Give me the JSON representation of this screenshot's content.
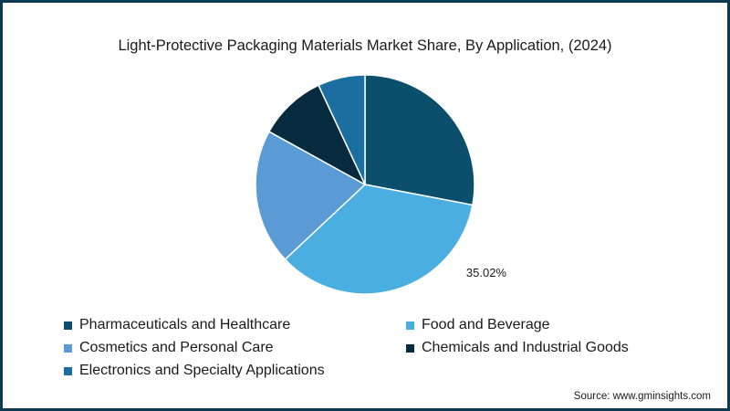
{
  "chart_data": {
    "type": "pie",
    "title": "Light-Protective Packaging Materials Market Share, By Application, (2024)",
    "slices": [
      {
        "name": "Pharmaceuticals and Healthcare",
        "value": 28.0,
        "color": "#0b4f6c"
      },
      {
        "name": "Food and Beverage",
        "value": 35.02,
        "color": "#4aafe0",
        "label": "35.02%"
      },
      {
        "name": "Cosmetics and Personal Care",
        "value": 20.0,
        "color": "#5b9bd5"
      },
      {
        "name": "Chemicals and Industrial Goods",
        "value": 10.0,
        "color": "#062a3e"
      },
      {
        "name": "Electronics and Specialty Applications",
        "value": 6.98,
        "color": "#1a6fa0"
      }
    ],
    "legend_position": "bottom"
  },
  "source": "Source: www.gminsights.com"
}
